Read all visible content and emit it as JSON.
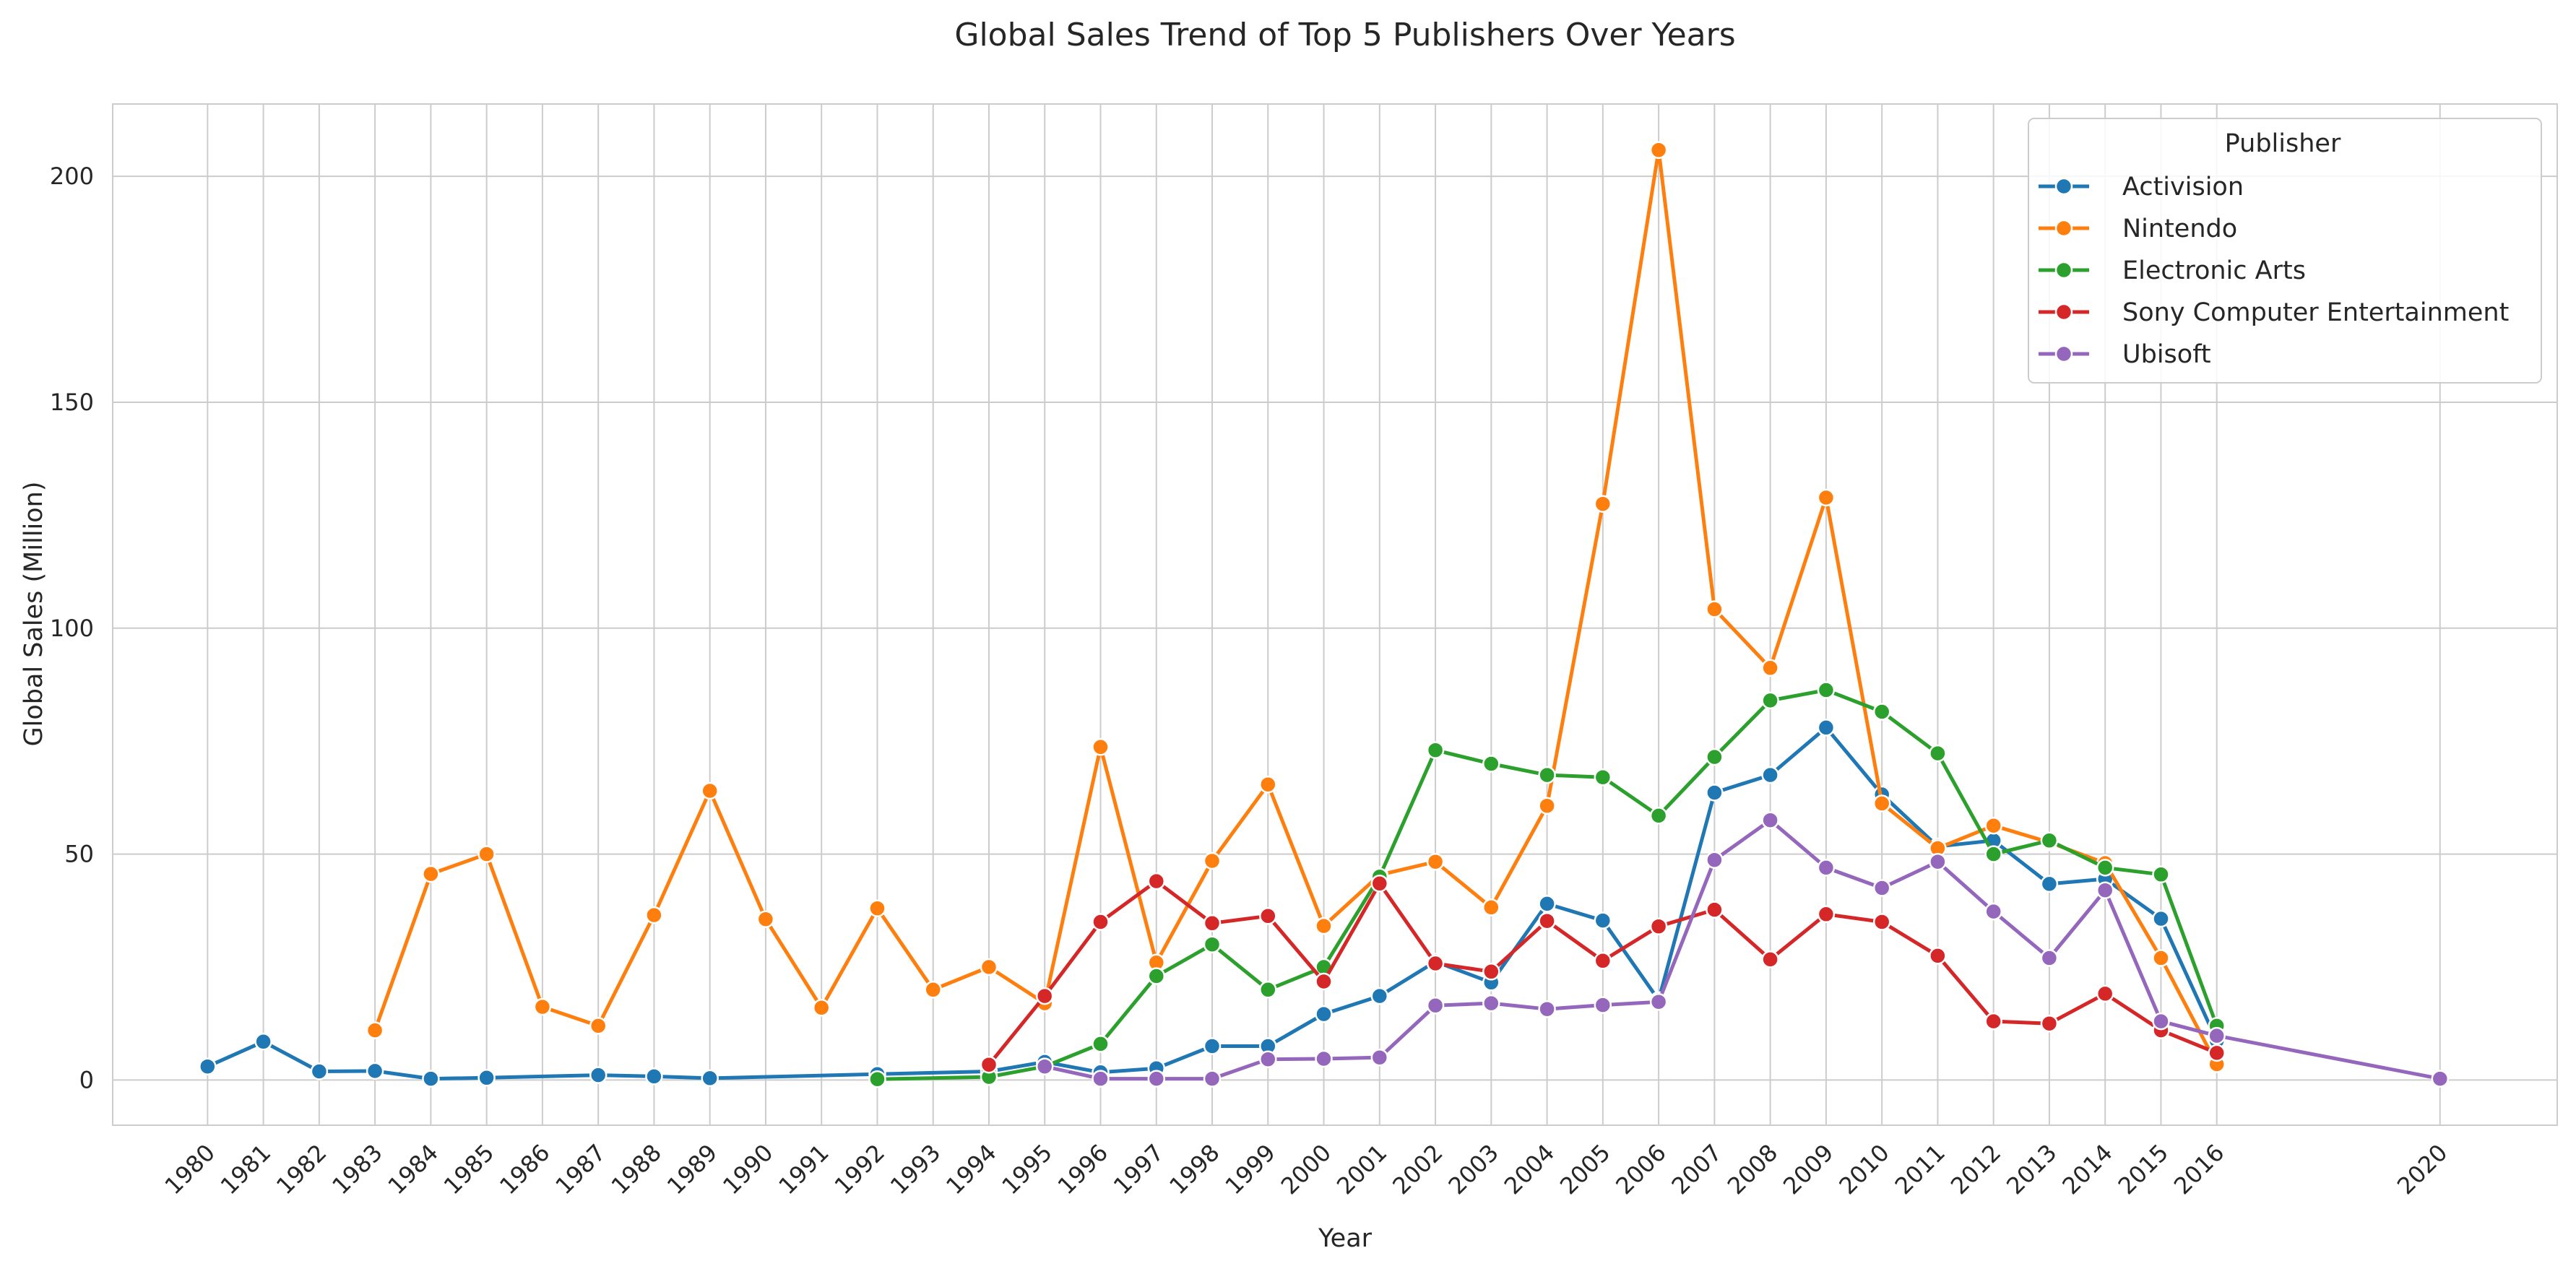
{
  "chart_data": {
    "type": "line",
    "title": "Global Sales Trend of Top 5 Publishers Over Years",
    "xlabel": "Year",
    "ylabel": "Global Sales (Million)",
    "ylim": [
      -10,
      216
    ],
    "xlim": [
      1978.3,
      2022.1
    ],
    "yticks": [
      0,
      50,
      100,
      150,
      200
    ],
    "xticks": [
      1980,
      1981,
      1982,
      1983,
      1984,
      1985,
      1986,
      1987,
      1988,
      1989,
      1990,
      1991,
      1992,
      1993,
      1994,
      1995,
      1996,
      1997,
      1998,
      1999,
      2000,
      2001,
      2002,
      2003,
      2004,
      2005,
      2006,
      2007,
      2008,
      2009,
      2010,
      2011,
      2012,
      2013,
      2014,
      2015,
      2016,
      2020
    ],
    "grid": true,
    "legend": {
      "title": "Publisher",
      "placement": "top-right"
    },
    "series": [
      {
        "name": "Activision",
        "color": "#1f77b4",
        "points": [
          [
            1980,
            3.0
          ],
          [
            1981,
            8.5
          ],
          [
            1982,
            1.9
          ],
          [
            1983,
            2.0
          ],
          [
            1984,
            0.3
          ],
          [
            1985,
            0.5
          ],
          [
            1987,
            1.1
          ],
          [
            1988,
            0.8
          ],
          [
            1989,
            0.4
          ],
          [
            1992,
            1.3
          ],
          [
            1994,
            1.9
          ],
          [
            1995,
            4.0
          ],
          [
            1996,
            1.7
          ],
          [
            1997,
            2.6
          ],
          [
            1998,
            7.5
          ],
          [
            1999,
            7.5
          ],
          [
            2000,
            14.6
          ],
          [
            2001,
            18.6
          ],
          [
            2002,
            26.2
          ],
          [
            2003,
            21.6
          ],
          [
            2004,
            39.0
          ],
          [
            2005,
            35.3
          ],
          [
            2006,
            17.7
          ],
          [
            2007,
            63.6
          ],
          [
            2008,
            67.5
          ],
          [
            2009,
            78.0
          ],
          [
            2010,
            63.2
          ],
          [
            2011,
            51.7
          ],
          [
            2012,
            53.0
          ],
          [
            2013,
            43.4
          ],
          [
            2014,
            44.5
          ],
          [
            2015,
            35.7
          ],
          [
            2016,
            8.7
          ]
        ]
      },
      {
        "name": "Nintendo",
        "color": "#ff7f0e",
        "points": [
          [
            1983,
            11.0
          ],
          [
            1984,
            45.6
          ],
          [
            1985,
            50.0
          ],
          [
            1986,
            16.2
          ],
          [
            1987,
            12.0
          ],
          [
            1988,
            36.5
          ],
          [
            1989,
            64.0
          ],
          [
            1990,
            35.6
          ],
          [
            1991,
            16.0
          ],
          [
            1992,
            38.0
          ],
          [
            1993,
            20.0
          ],
          [
            1994,
            25.0
          ],
          [
            1995,
            17.0
          ],
          [
            1996,
            73.7
          ],
          [
            1997,
            26.0
          ],
          [
            1998,
            48.5
          ],
          [
            1999,
            65.4
          ],
          [
            2000,
            34.1
          ],
          [
            2001,
            45.4
          ],
          [
            2002,
            48.3
          ],
          [
            2003,
            38.2
          ],
          [
            2004,
            60.7
          ],
          [
            2005,
            127.5
          ],
          [
            2006,
            205.8
          ],
          [
            2007,
            104.2
          ],
          [
            2008,
            91.2
          ],
          [
            2009,
            128.9
          ],
          [
            2010,
            61.2
          ],
          [
            2011,
            51.3
          ],
          [
            2012,
            56.3
          ],
          [
            2013,
            52.6
          ],
          [
            2014,
            48.0
          ],
          [
            2015,
            27.0
          ],
          [
            2016,
            3.5
          ]
        ]
      },
      {
        "name": "Electronic Arts",
        "color": "#2ca02c",
        "points": [
          [
            1992,
            0.2
          ],
          [
            1994,
            0.7
          ],
          [
            1995,
            3.0
          ],
          [
            1996,
            8.0
          ],
          [
            1997,
            23.0
          ],
          [
            1998,
            30.0
          ],
          [
            1999,
            20.0
          ],
          [
            2000,
            25.0
          ],
          [
            2001,
            45.0
          ],
          [
            2002,
            73.0
          ],
          [
            2003,
            70.0
          ],
          [
            2004,
            67.5
          ],
          [
            2005,
            67.0
          ],
          [
            2006,
            58.5
          ],
          [
            2007,
            71.5
          ],
          [
            2008,
            84.0
          ],
          [
            2009,
            86.3
          ],
          [
            2010,
            81.5
          ],
          [
            2011,
            72.3
          ],
          [
            2012,
            50.0
          ],
          [
            2013,
            53.0
          ],
          [
            2014,
            47.0
          ],
          [
            2015,
            45.5
          ],
          [
            2016,
            12.0
          ]
        ]
      },
      {
        "name": "Sony Computer Entertainment",
        "color": "#d62728",
        "points": [
          [
            1994,
            3.4
          ],
          [
            1995,
            18.6
          ],
          [
            1996,
            35.0
          ],
          [
            1997,
            44.0
          ],
          [
            1998,
            34.7
          ],
          [
            1999,
            36.3
          ],
          [
            2000,
            21.8
          ],
          [
            2001,
            43.5
          ],
          [
            2002,
            25.8
          ],
          [
            2003,
            24.0
          ],
          [
            2004,
            35.2
          ],
          [
            2005,
            26.4
          ],
          [
            2006,
            34.0
          ],
          [
            2007,
            37.7
          ],
          [
            2008,
            26.7
          ],
          [
            2009,
            36.7
          ],
          [
            2010,
            35.0
          ],
          [
            2011,
            27.5
          ],
          [
            2012,
            13.0
          ],
          [
            2013,
            12.5
          ],
          [
            2014,
            19.1
          ],
          [
            2015,
            11.0
          ],
          [
            2016,
            6.0
          ]
        ]
      },
      {
        "name": "Ubisoft",
        "color": "#9467bd",
        "points": [
          [
            1995,
            3.0
          ],
          [
            1996,
            0.3
          ],
          [
            1997,
            0.3
          ],
          [
            1998,
            0.3
          ],
          [
            1999,
            4.6
          ],
          [
            2000,
            4.7
          ],
          [
            2001,
            5.0
          ],
          [
            2002,
            16.5
          ],
          [
            2003,
            17.0
          ],
          [
            2004,
            15.7
          ],
          [
            2005,
            16.6
          ],
          [
            2006,
            17.3
          ],
          [
            2007,
            48.7
          ],
          [
            2008,
            57.5
          ],
          [
            2009,
            47.0
          ],
          [
            2010,
            42.5
          ],
          [
            2011,
            48.3
          ],
          [
            2012,
            37.3
          ],
          [
            2013,
            27.0
          ],
          [
            2014,
            42.0
          ],
          [
            2015,
            13.0
          ],
          [
            2016,
            9.8
          ],
          [
            2020,
            0.3
          ]
        ]
      }
    ]
  }
}
